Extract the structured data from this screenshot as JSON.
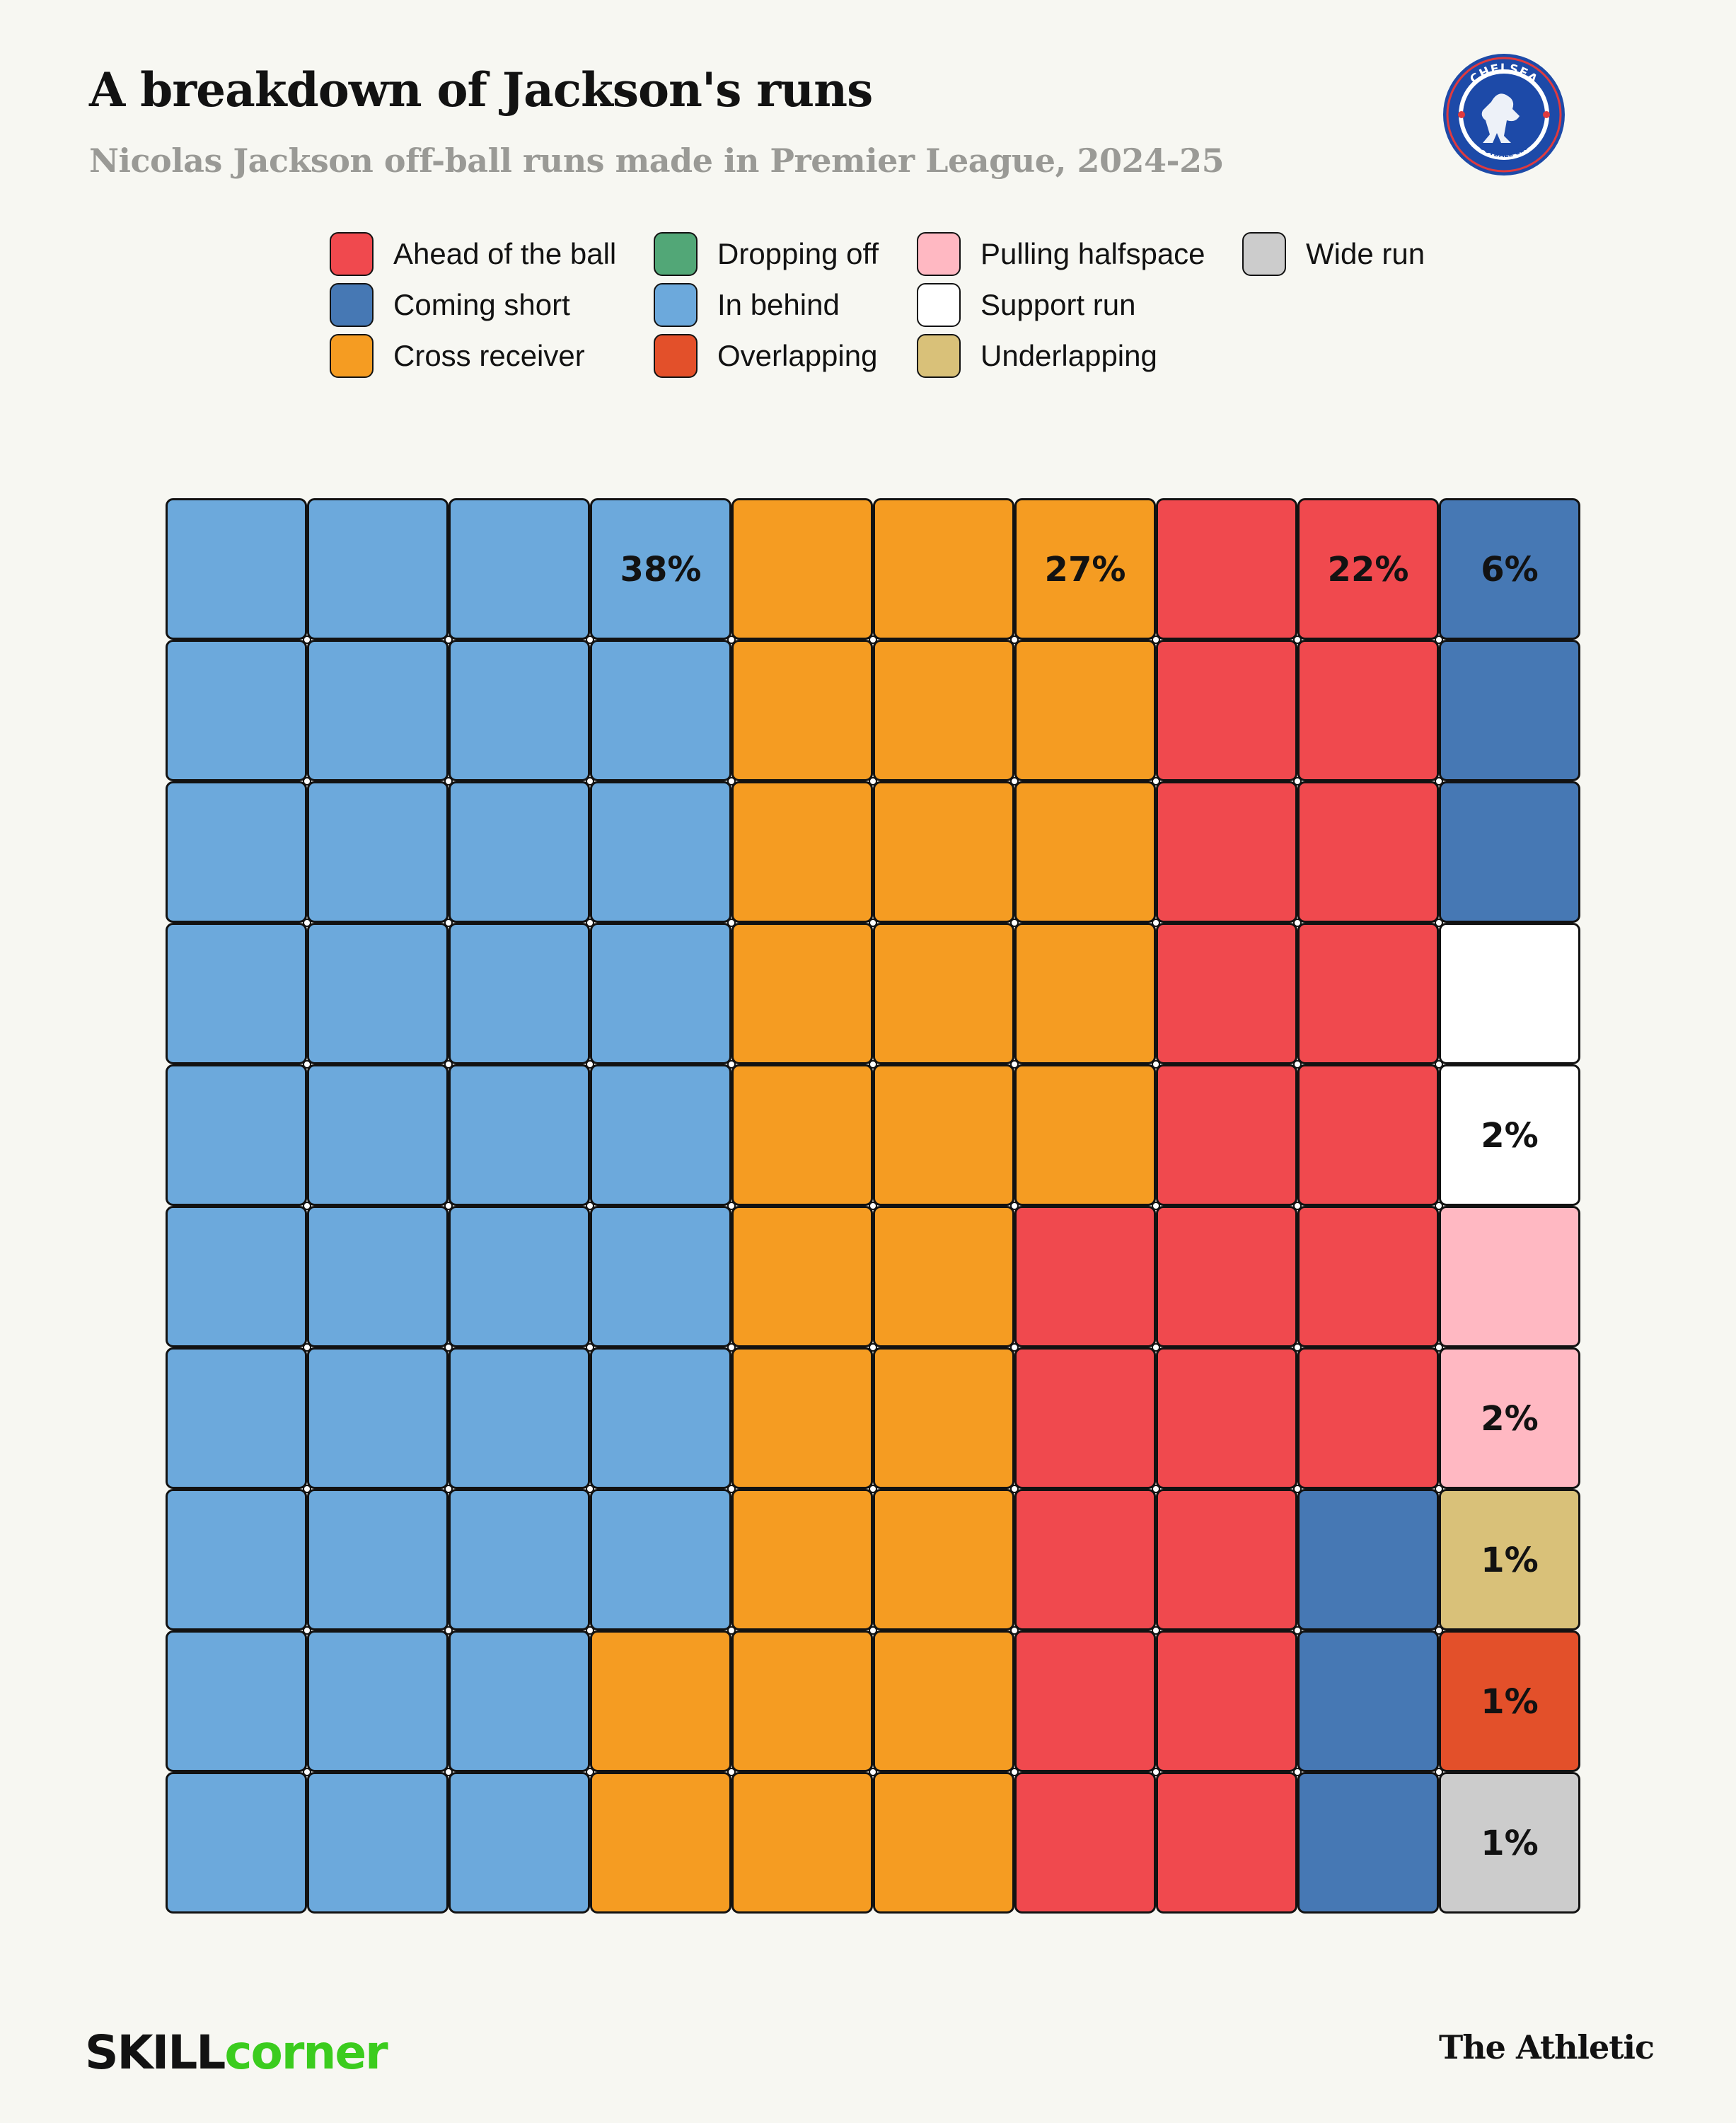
{
  "header": {
    "title": "A breakdown of Jackson's runs",
    "subtitle": "Nicolas Jackson off-ball runs made in Premier League, 2024-25"
  },
  "logo": {
    "top_text": "CHELSEA",
    "bottom_text": "FOOTBALL CLUB",
    "icon": "chelsea-crest-icon"
  },
  "legend": {
    "items": [
      {
        "label": "Ahead of the ball",
        "color": "#f0494e"
      },
      {
        "label": "Coming short",
        "color": "#4678b4"
      },
      {
        "label": "Cross receiver",
        "color": "#f59c22"
      },
      {
        "label": "Dropping off",
        "color": "#52a777"
      },
      {
        "label": "In behind",
        "color": "#6ca9dc"
      },
      {
        "label": "Overlapping",
        "color": "#e3502a"
      },
      {
        "label": "Pulling halfspace",
        "color": "#ffb8c2"
      },
      {
        "label": "Support run",
        "color": "#ffffff"
      },
      {
        "label": "Underlapping",
        "color": "#d9c179"
      },
      {
        "label": "Wide run",
        "color": "#cccccc"
      }
    ]
  },
  "chart_data": {
    "type": "waffle",
    "rows": 10,
    "cols": 10,
    "series": [
      {
        "name": "In behind",
        "value": 38,
        "label": "38%",
        "color": "#6ca9dc"
      },
      {
        "name": "Cross receiver",
        "value": 27,
        "label": "27%",
        "color": "#f59c22"
      },
      {
        "name": "Ahead of the ball",
        "value": 22,
        "label": "22%",
        "color": "#f0494e"
      },
      {
        "name": "Coming short",
        "value": 6,
        "label": "6%",
        "color": "#4678b4"
      },
      {
        "name": "Support run",
        "value": 2,
        "label": "2%",
        "color": "#ffffff"
      },
      {
        "name": "Pulling halfspace",
        "value": 2,
        "label": "2%",
        "color": "#ffb8c2"
      },
      {
        "name": "Underlapping",
        "value": 1,
        "label": "1%",
        "color": "#d9c179"
      },
      {
        "name": "Overlapping",
        "value": 1,
        "label": "1%",
        "color": "#e3502a"
      },
      {
        "name": "Wide run",
        "value": 1,
        "label": "1%",
        "color": "#cccccc"
      },
      {
        "name": "Dropping off",
        "value": 0,
        "label": "",
        "color": "#52a777"
      }
    ]
  },
  "footer": {
    "brand_left_a": "SKILL",
    "brand_left_b": "corner",
    "brand_right": "The Athletic"
  }
}
